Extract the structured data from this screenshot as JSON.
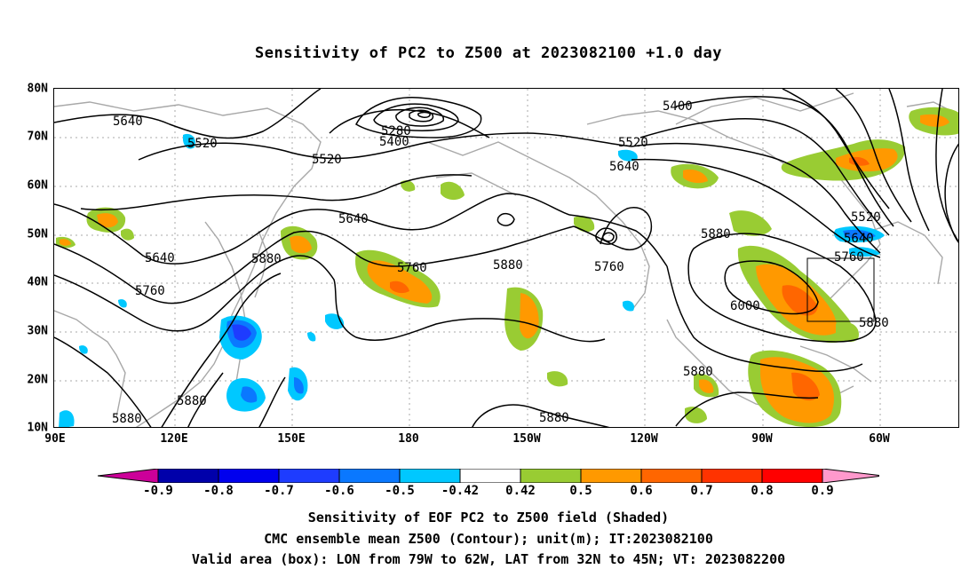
{
  "title": "Sensitivity of PC2 to Z500 at 2023082100 +1.0 day",
  "lat_labels": [
    "80N",
    "70N",
    "60N",
    "50N",
    "40N",
    "30N",
    "20N",
    "10N"
  ],
  "lon_labels": [
    "90E",
    "120E",
    "150E",
    "180",
    "150W",
    "120W",
    "90W",
    "60W"
  ],
  "colorbar": {
    "colors": [
      "#cc0099",
      "#0000aa",
      "#0000ee",
      "#1e3cff",
      "#0a78ff",
      "#00c8ff",
      "#ffffff",
      "#99cc33",
      "#ff9900",
      "#ff6600",
      "#ff3300",
      "#ff0000",
      "#ff99cc"
    ],
    "labels": [
      "-0.9",
      "-0.8",
      "-0.7",
      "-0.6",
      "-0.5",
      "-0.42",
      "0.42",
      "0.5",
      "0.6",
      "0.7",
      "0.8",
      "0.9"
    ]
  },
  "contour_labels": [
    "5640",
    "5520",
    "5280",
    "5400",
    "5520",
    "5400",
    "5520",
    "5640",
    "5520",
    "5640",
    "5640",
    "5880",
    "5760",
    "5640",
    "5880",
    "5760",
    "5880",
    "5760",
    "6000",
    "5760",
    "5880",
    "5880",
    "5880",
    "5880",
    "5880"
  ],
  "captions": {
    "line1": "Sensitivity of EOF PC2 to Z500 field (Shaded)",
    "line2": "CMC ensemble mean Z500 (Contour); unit(m); IT:2023082100",
    "line3": "Valid area (box): LON from 79W to 62W, LAT from 32N to 45N; VT: 2023082200"
  }
}
